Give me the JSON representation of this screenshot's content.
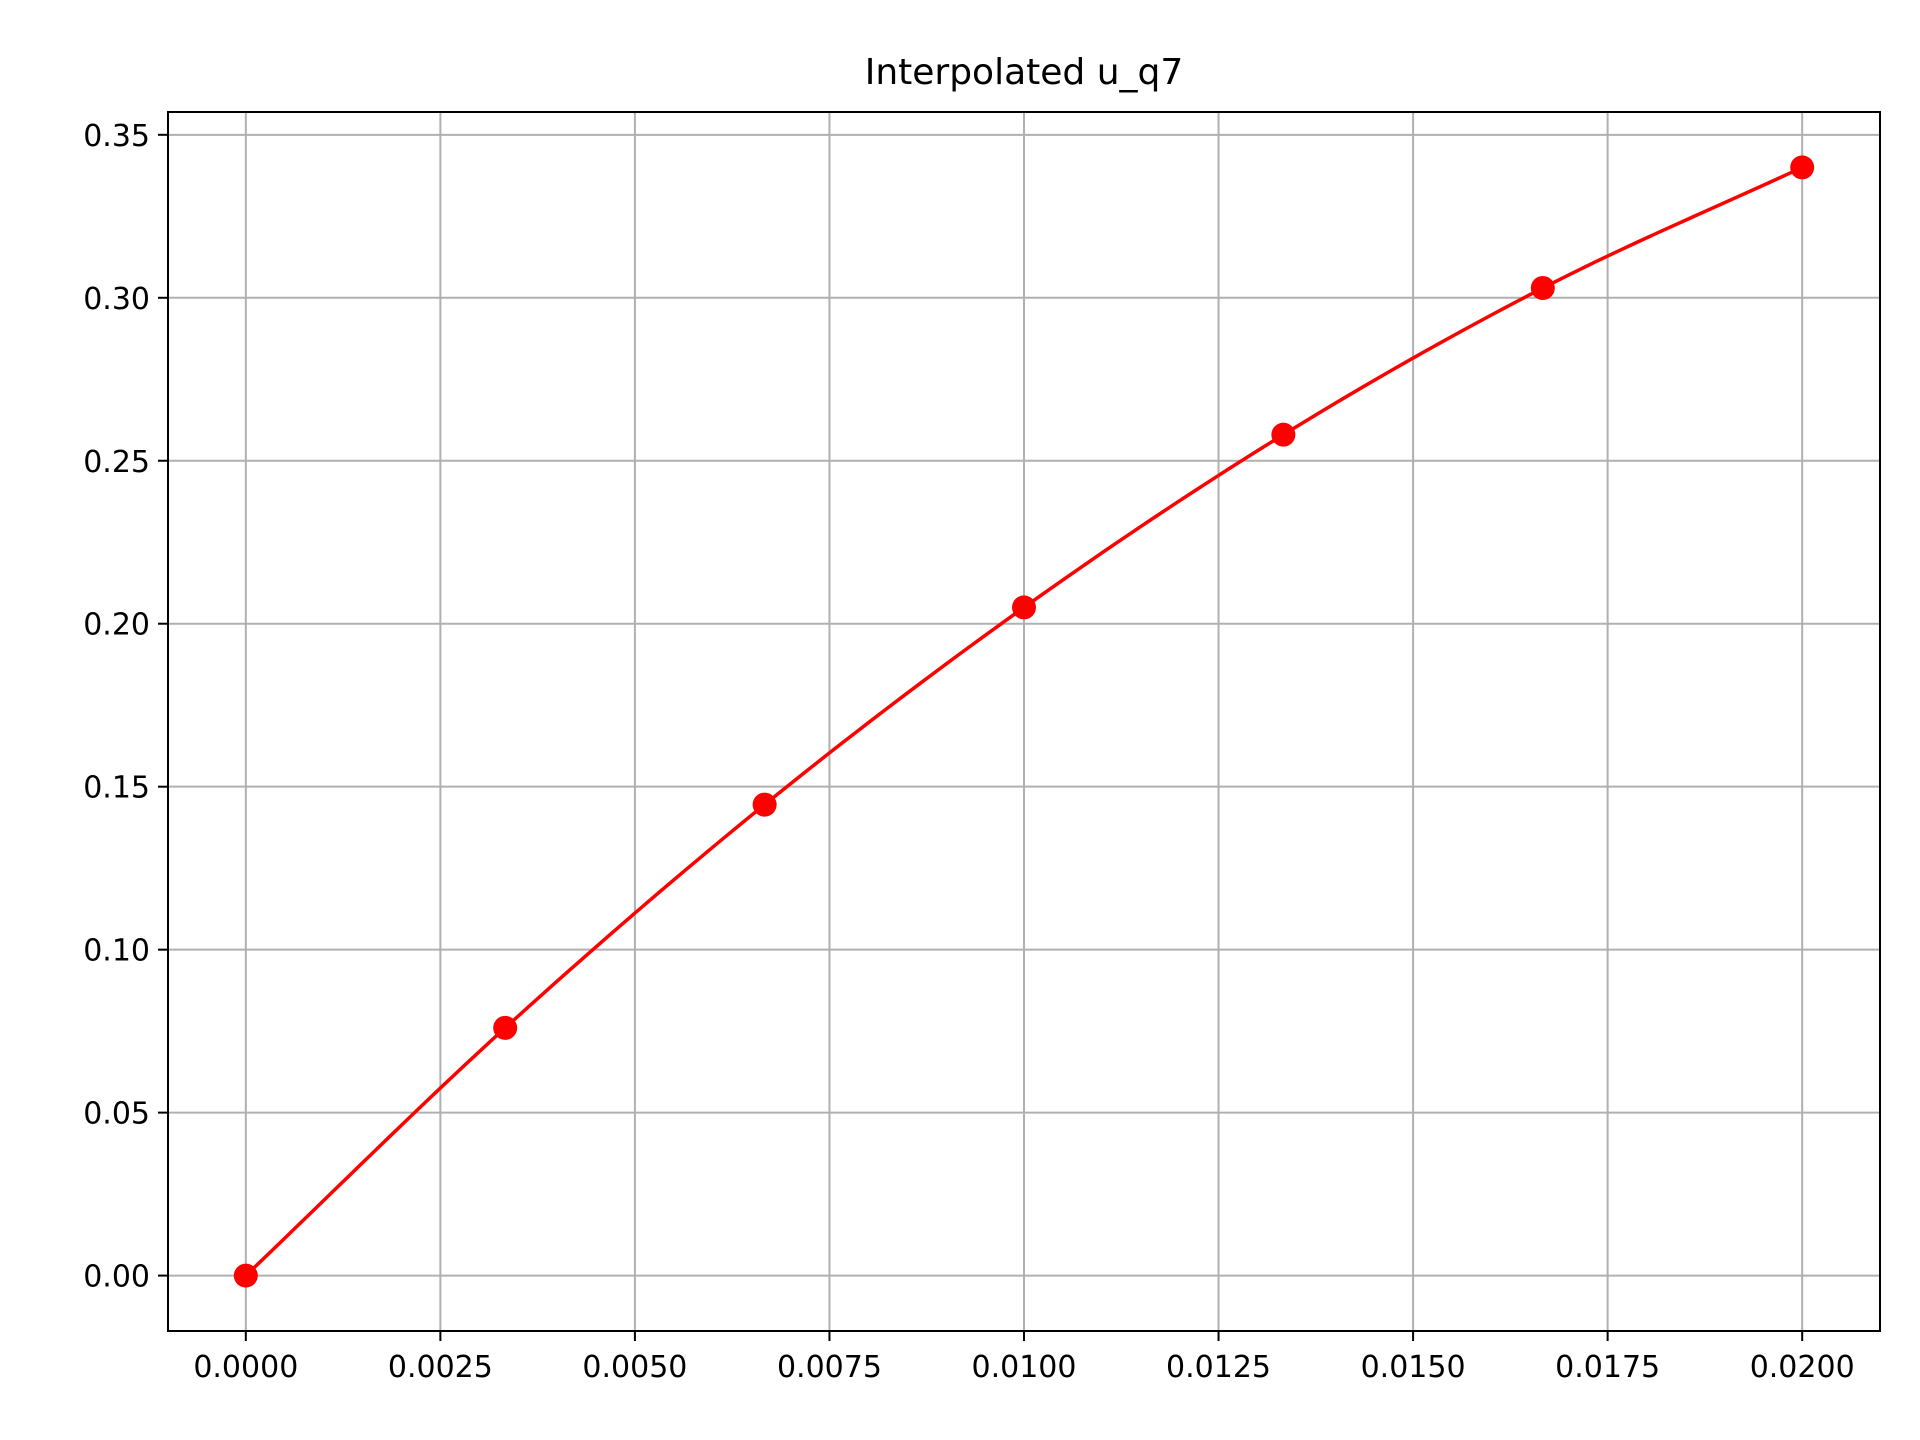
{
  "chart_data": {
    "type": "line",
    "title": "Interpolated u_q7",
    "xlabel": "",
    "ylabel": "",
    "xlim": [
      -0.001,
      0.021
    ],
    "ylim": [
      -0.017,
      0.357
    ],
    "x_ticks": [
      0.0,
      0.0025,
      0.005,
      0.0075,
      0.01,
      0.0125,
      0.015,
      0.0175,
      0.02
    ],
    "x_tick_labels": [
      "0.0000",
      "0.0025",
      "0.0050",
      "0.0075",
      "0.0100",
      "0.0125",
      "0.0150",
      "0.0175",
      "0.0200"
    ],
    "y_ticks": [
      0.0,
      0.05,
      0.1,
      0.15,
      0.2,
      0.25,
      0.3,
      0.35
    ],
    "y_tick_labels": [
      "0.00",
      "0.05",
      "0.10",
      "0.15",
      "0.20",
      "0.25",
      "0.30",
      "0.35"
    ],
    "grid": true,
    "series": [
      {
        "color": "#ff0000",
        "marker": "circle",
        "x": [
          0.0,
          0.003333,
          0.006667,
          0.01,
          0.013333,
          0.016667,
          0.02
        ],
        "values": [
          0.0,
          0.076,
          0.1445,
          0.205,
          0.258,
          0.303,
          0.34
        ]
      }
    ]
  }
}
